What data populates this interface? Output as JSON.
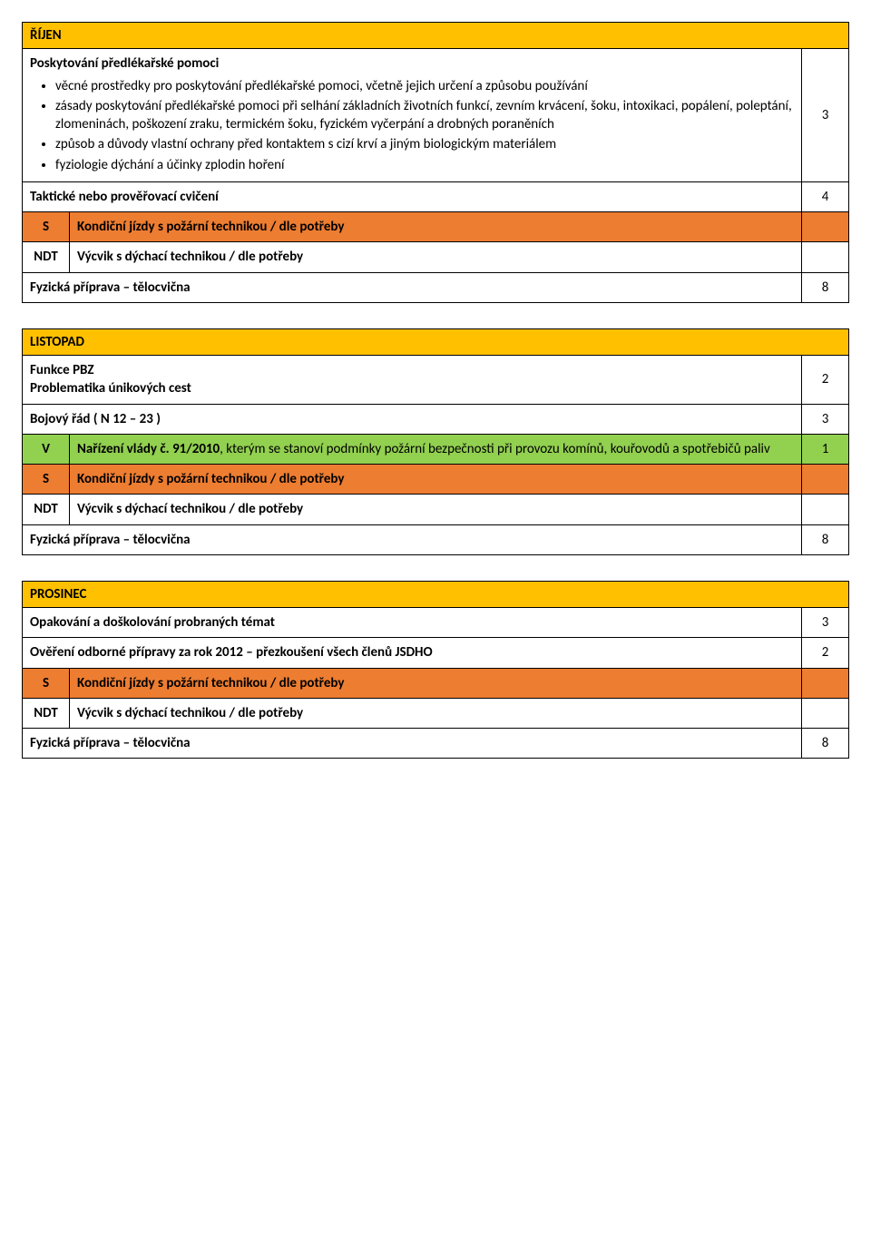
{
  "colors": {
    "month_header": "#ffc000",
    "row_orange": "#ed7d31",
    "row_green": "#92d050",
    "background": "#ffffff",
    "border": "#000000",
    "text": "#000000"
  },
  "october": {
    "month": "ŘÍJEN",
    "first_aid": {
      "title": "Poskytování předlékařské pomoci",
      "bullets": [
        "věcné prostředky pro poskytování předlékařské pomoci, včetně jejich určení a způsobu používání",
        "zásady poskytování předlékařské pomoci při selhání základních životních funkcí, zevním krvácení, šoku, intoxikaci, popálení, poleptání, zlomeninách, poškození zraku, termickém šoku, fyzickém vyčerpání a drobných poraněních",
        "způsob a důvody vlastní ochrany před kontaktem s cizí krví a jiným biologickým materiálem",
        "fyziologie dýchání a účinky zplodin hoření"
      ],
      "hours": "3"
    },
    "tactical": {
      "label": "Taktické nebo prověřovací cvičení",
      "hours": "4"
    },
    "s_row": {
      "code": "S",
      "label": "Kondiční jízdy s požární technikou / dle potřeby"
    },
    "ndt_row": {
      "code": "NDT",
      "label": "Výcvik s dýchací technikou / dle potřeby"
    },
    "gym": {
      "label": "Fyzická příprava – tělocvična",
      "hours": "8"
    }
  },
  "november": {
    "month": "LISTOPAD",
    "pbz": {
      "line1": "Funkce PBZ",
      "line2": "Problematika únikových cest",
      "hours": "2"
    },
    "rules": {
      "label": "Bojový řád ( N 12 – 23 )",
      "hours": "3"
    },
    "v_row": {
      "code": "V",
      "label_part1": "Nařízení vlády č. 91/2010",
      "label_part2": ", kterým se stanoví podmínky požární bezpečnosti při provozu komínů, kouřovodů a spotřebičů paliv",
      "hours": "1"
    },
    "s_row": {
      "code": "S",
      "label": "Kondiční jízdy s požární technikou / dle potřeby"
    },
    "ndt_row": {
      "code": "NDT",
      "label": "Výcvik s dýchací technikou / dle potřeby"
    },
    "gym": {
      "label": "Fyzická příprava – tělocvična",
      "hours": "8"
    }
  },
  "december": {
    "month": "PROSINEC",
    "review": {
      "label": "Opakování a doškolování probraných témat",
      "hours": "3"
    },
    "exam": {
      "label": "Ověření odborné přípravy za rok 2012 – přezkoušení všech členů JSDHO",
      "hours": "2"
    },
    "s_row": {
      "code": "S",
      "label": "Kondiční jízdy s požární technikou / dle potřeby"
    },
    "ndt_row": {
      "code": "NDT",
      "label": "Výcvik s dýchací technikou / dle potřeby"
    },
    "gym": {
      "label": "Fyzická příprava – tělocvična",
      "hours": "8"
    }
  }
}
